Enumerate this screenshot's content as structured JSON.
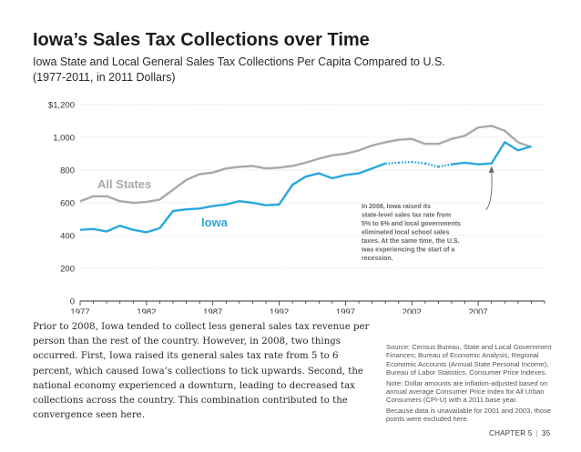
{
  "header": {
    "title": "Iowa’s Sales Tax Collections over Time",
    "subtitle": "Iowa State and Local General Sales Tax Collections Per Capita Compared to U.S. (1977-2011, in 2011 Dollars)"
  },
  "chart_data": {
    "type": "line",
    "title": "Iowa’s Sales Tax Collections over Time",
    "subtitle": "Iowa State and Local General Sales Tax Collections Per Capita Compared to U.S. (1977-2011, in 2011 Dollars)",
    "xlabel": "",
    "ylabel": "",
    "xlim": [
      1977,
      2012
    ],
    "ylim": [
      0,
      1200
    ],
    "yticks": [
      0,
      200,
      400,
      600,
      800,
      1000,
      1200
    ],
    "ytick_labels": [
      "0",
      "200",
      "400",
      "600",
      "800",
      "1,000",
      "$1,200"
    ],
    "xticks": [
      1977,
      1982,
      1987,
      1992,
      1997,
      2002,
      2007
    ],
    "xtick_labels": [
      "1977",
      "1982",
      "1987",
      "1992",
      "1997",
      "2002",
      "2007"
    ],
    "grid": true,
    "series": [
      {
        "name": "All States",
        "color": "#a7a9ac",
        "x": [
          1977,
          1978,
          1979,
          1980,
          1981,
          1982,
          1983,
          1984,
          1985,
          1986,
          1987,
          1988,
          1989,
          1990,
          1991,
          1992,
          1993,
          1994,
          1995,
          1996,
          1997,
          1998,
          1999,
          2000,
          2001,
          2002,
          2003,
          2004,
          2005,
          2006,
          2007,
          2008,
          2009,
          2010,
          2011
        ],
        "values": [
          610,
          640,
          640,
          610,
          600,
          605,
          620,
          680,
          740,
          775,
          785,
          810,
          820,
          825,
          810,
          815,
          825,
          845,
          870,
          890,
          900,
          920,
          950,
          970,
          985,
          990,
          960,
          960,
          990,
          1010,
          1060,
          1070,
          1040,
          970,
          940
        ]
      },
      {
        "name": "Iowa",
        "color": "#29a8dd",
        "x": [
          1977,
          1978,
          1979,
          1980,
          1981,
          1982,
          1983,
          1984,
          1985,
          1986,
          1987,
          1988,
          1989,
          1990,
          1991,
          1992,
          1993,
          1994,
          1995,
          1996,
          1997,
          1998,
          1999,
          2000,
          2001,
          2002,
          2003,
          2004,
          2005,
          2006,
          2007,
          2008,
          2009,
          2010,
          2011
        ],
        "values": [
          435,
          440,
          425,
          460,
          435,
          420,
          445,
          550,
          560,
          565,
          580,
          590,
          610,
          600,
          585,
          590,
          710,
          760,
          780,
          750,
          770,
          780,
          810,
          840,
          845,
          850,
          840,
          820,
          835,
          845,
          835,
          840,
          970,
          920,
          945
        ],
        "dotted_segments": [
          [
            2000,
            2005
          ]
        ]
      }
    ],
    "annotations": [
      {
        "text": "All States"
      },
      {
        "text": "Iowa"
      },
      {
        "text": "In 2008, Iowa raised its state-level sales tax rate from 5% to 6% and local governments eliminated local school sales taxes. At the same time, the U.S. was experiencing the start of a recession.",
        "points_to": {
          "x": 2008,
          "y": 840
        }
      }
    ]
  },
  "body_text": "Prior to 2008, Iowa tended to collect less general sales tax revenue per person than the rest of the country. However, in 2008, two things occurred. First, Iowa raised its general sales tax rate from 5 to 6 percent, which caused Iowa’s collections to tick upwards. Second, the national economy experienced a downturn, leading to decreased tax collections across the country. This combination contributed to the convergence seen here.",
  "source": {
    "line1": "Source: Census Bureau, State and Local Government Finances; Bureau of Economic Analysis, Regional Economic Accounts (Annual State Personal Income); Bureau of Labor Statistics, Consumer Price Indexes.",
    "line2": "Note: Dollar amounts are inflation-adjusted based on annual average Consumer Price Index for All Urban Consumers (CPI-U) with a 2011 base year.",
    "line3": "Because data is unavailable for 2001 and 2003, those points were excluded here."
  },
  "footer": {
    "chapter": "CHAPTER 5",
    "page": "35"
  }
}
